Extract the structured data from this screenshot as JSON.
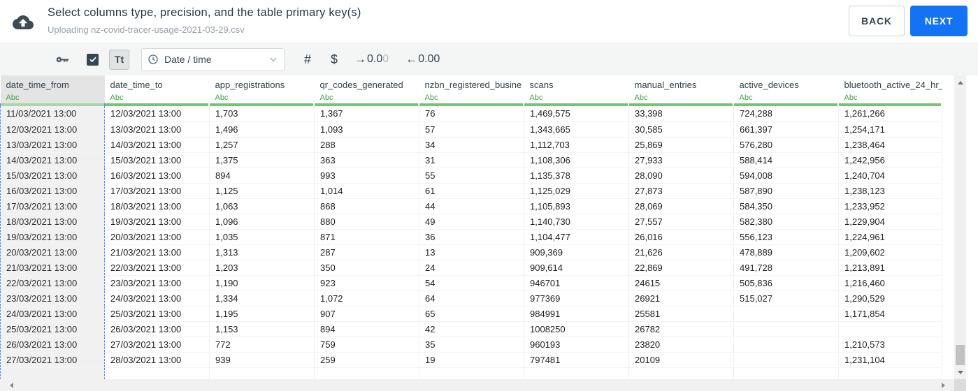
{
  "header": {
    "title": "Select columns type, precision, and the table primary key(s)",
    "subtitle": "Uploading nz-covid-tracer-usage-2021-03-29.csv",
    "back_label": "BACK",
    "next_label": "NEXT"
  },
  "toolbar": {
    "text_type_label": "Tt",
    "type_select_value": "Date / time",
    "number_symbol": "#",
    "currency_symbol": "$",
    "decimal_right": {
      "arrow": "→",
      "dark": "0.0",
      "light": "0"
    },
    "decimal_left": {
      "arrow": "←",
      "value": "0.00"
    }
  },
  "colors": {
    "accent_blue": "#1473f2",
    "selection_dash_blue": "#4f8ef7",
    "type_label_green": "#3fa24a",
    "column_bar_green": "#73c473",
    "column_bar_green_selected": "#a9d6a9"
  },
  "table": {
    "columns": [
      {
        "name": "date_time_from",
        "type_label": "Abc",
        "selected": true
      },
      {
        "name": "date_time_to",
        "type_label": "Abc",
        "selected": false
      },
      {
        "name": "app_registrations",
        "type_label": "Abc",
        "selected": false
      },
      {
        "name": "qr_codes_generated",
        "type_label": "Abc",
        "selected": false
      },
      {
        "name": "nzbn_registered_busine",
        "type_label": "Abc",
        "selected": false
      },
      {
        "name": "scans",
        "type_label": "Abc",
        "selected": false
      },
      {
        "name": "manual_entries",
        "type_label": "Abc",
        "selected": false
      },
      {
        "name": "active_devices",
        "type_label": "Abc",
        "selected": false
      },
      {
        "name": "bluetooth_active_24_hr_",
        "type_label": "Abc",
        "selected": false
      }
    ],
    "rows": [
      [
        "11/03/2021 13:00",
        "12/03/2021 13:00",
        "1,703",
        "1,367",
        "76",
        "1,469,575",
        "33,398",
        "724,288",
        "1,261,266"
      ],
      [
        "12/03/2021 13:00",
        "13/03/2021 13:00",
        "1,496",
        "1,093",
        "57",
        "1,343,665",
        "30,585",
        "661,397",
        "1,254,171"
      ],
      [
        "13/03/2021 13:00",
        "14/03/2021 13:00",
        "1,257",
        "288",
        "34",
        "1,112,703",
        "25,869",
        "576,280",
        "1,238,464"
      ],
      [
        "14/03/2021 13:00",
        "15/03/2021 13:00",
        "1,375",
        "363",
        "31",
        "1,108,306",
        "27,933",
        "588,414",
        "1,242,956"
      ],
      [
        "15/03/2021 13:00",
        "16/03/2021 13:00",
        "894",
        "993",
        "55",
        "1,135,378",
        "28,090",
        "594,008",
        "1,240,704"
      ],
      [
        "16/03/2021 13:00",
        "17/03/2021 13:00",
        "1,125",
        "1,014",
        "61",
        "1,125,029",
        "27,873",
        "587,890",
        "1,238,123"
      ],
      [
        "17/03/2021 13:00",
        "18/03/2021 13:00",
        "1,063",
        "868",
        "44",
        "1,105,893",
        "28,069",
        "584,350",
        "1,233,952"
      ],
      [
        "18/03/2021 13:00",
        "19/03/2021 13:00",
        "1,096",
        "880",
        "49",
        "1,140,730",
        "27,557",
        "582,380",
        "1,229,904"
      ],
      [
        "19/03/2021 13:00",
        "20/03/2021 13:00",
        "1,035",
        "871",
        "36",
        "1,104,477",
        "26,016",
        "556,123",
        "1,224,961"
      ],
      [
        "20/03/2021 13:00",
        "21/03/2021 13:00",
        "1,313",
        "287",
        "13",
        "909,369",
        "21,626",
        "478,889",
        "1,209,602"
      ],
      [
        "21/03/2021 13:00",
        "22/03/2021 13:00",
        "1,203",
        "350",
        "24",
        "909,614",
        "22,869",
        "491,728",
        "1,213,891"
      ],
      [
        "22/03/2021 13:00",
        "23/03/2021 13:00",
        "1,190",
        "923",
        "54",
        "946701",
        "24615",
        "505,836",
        "1,216,460"
      ],
      [
        "23/03/2021 13:00",
        "24/03/2021 13:00",
        "1,334",
        "1,072",
        "64",
        "977369",
        "26921",
        "515,027",
        "1,290,529"
      ],
      [
        "24/03/2021 13:00",
        "25/03/2021 13:00",
        "1,195",
        "907",
        "65",
        "984991",
        "25581",
        "",
        "1,171,854"
      ],
      [
        "25/03/2021 13:00",
        "26/03/2021 13:00",
        "1,153",
        "894",
        "42",
        "1008250",
        "26782",
        "",
        ""
      ],
      [
        "26/03/2021 13:00",
        "27/03/2021 13:00",
        "772",
        "759",
        "35",
        "960193",
        "23820",
        "",
        "1,210,573"
      ],
      [
        "27/03/2021 13:00",
        "28/03/2021 13:00",
        "939",
        "259",
        "19",
        "797481",
        "20109",
        "",
        "1,231,104"
      ]
    ]
  }
}
